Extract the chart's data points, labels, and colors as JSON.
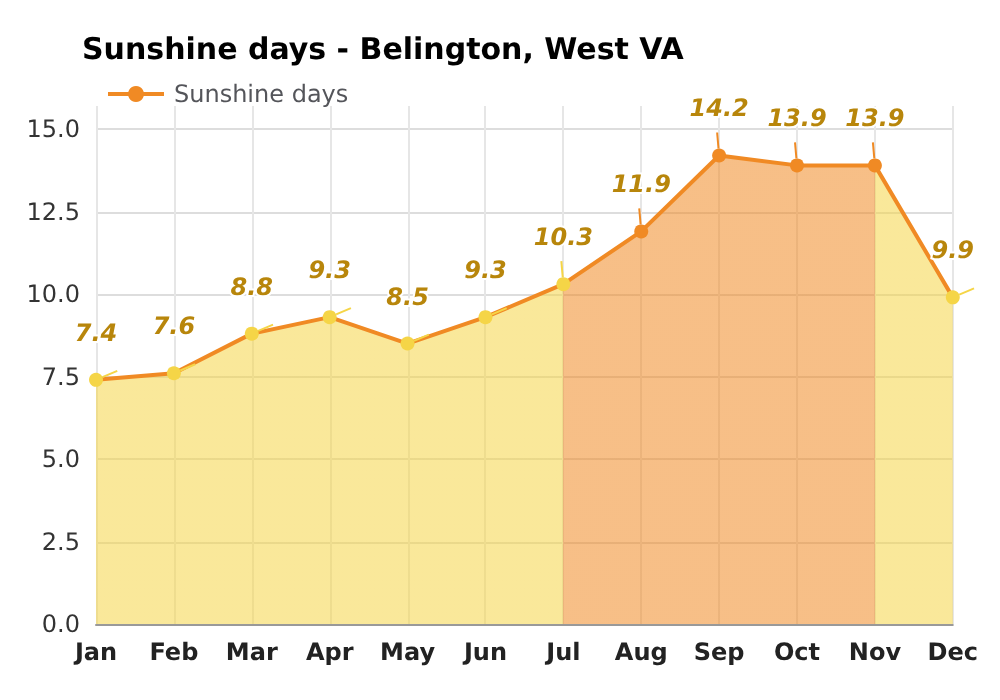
{
  "chart_data": {
    "type": "area",
    "title": "Sunshine days - Belington, West VA",
    "categories": [
      "Jan",
      "Feb",
      "Mar",
      "Apr",
      "May",
      "Jun",
      "Jul",
      "Aug",
      "Sep",
      "Oct",
      "Nov",
      "Dec"
    ],
    "series": [
      {
        "name": "Sunshine days",
        "color": "#f08a24",
        "values": [
          7.4,
          7.6,
          8.8,
          9.3,
          8.5,
          9.3,
          10.3,
          11.9,
          14.2,
          13.9,
          13.9,
          9.9
        ],
        "colors": [
          "#f5d547",
          "#f5d547",
          "#f5d547",
          "#f5d547",
          "#f5d547",
          "#f5d547",
          "#f5d547",
          "#f08a24",
          "#f08a24",
          "#f08a24",
          "#f08a24",
          "#f5d547"
        ]
      }
    ],
    "ylim": [
      0,
      15.7
    ],
    "yticks": [
      {
        "value": 0,
        "label": "0.0"
      },
      {
        "value": 2.5,
        "label": "2.5"
      },
      {
        "value": 5,
        "label": "5.0"
      },
      {
        "value": 7.5,
        "label": "7.5"
      },
      {
        "value": 10,
        "label": "10.0"
      },
      {
        "value": 12.5,
        "label": "12.5"
      },
      {
        "value": 15,
        "label": "15.0"
      }
    ],
    "grid": true,
    "legend": "top left",
    "marker": "circle",
    "data_labels": true
  }
}
